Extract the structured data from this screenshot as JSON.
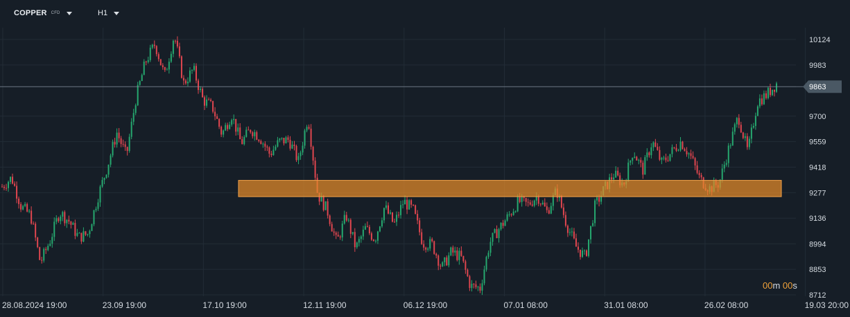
{
  "header": {
    "symbol": "COPPER",
    "symbol_sub": "CFD",
    "timeframe": "H1"
  },
  "timer": {
    "m": "00",
    "m_unit": "m ",
    "s": "00",
    "s_unit": "s"
  },
  "colors": {
    "background": "#161e27",
    "grid": "#222c36",
    "up": "#26a86f",
    "down": "#e0464f",
    "zone_fill": "#e58a2a",
    "zone_border": "#f2a24a",
    "price_marker": "#4a5864"
  },
  "chart_data": {
    "type": "candlestick",
    "ylim": [
      8712,
      10180
    ],
    "y_ticks": [
      10124,
      9983,
      9863,
      9700,
      9559,
      9418,
      9277,
      9136,
      8994,
      8853,
      8712
    ],
    "x_ticks": [
      "28.08.2024  19:00",
      "23.09  19:00",
      "17.10  19:00",
      "12.11  19:00",
      "06.12  19:00",
      "07.01  08:00",
      "31.01  08:00",
      "26.02  08:00",
      "19.03  20:00"
    ],
    "current_price": 9863,
    "zone": {
      "low": 9255,
      "high": 9345,
      "from": "05.11",
      "to": "current"
    },
    "path_anchors": [
      9310,
      9360,
      9200,
      9150,
      8890,
      9010,
      9170,
      9120,
      9030,
      9050,
      9250,
      9420,
      9610,
      9480,
      9800,
      10000,
      10100,
      9920,
      10150,
      9880,
      9960,
      9790,
      9750,
      9600,
      9710,
      9550,
      9630,
      9580,
      9490,
      9560,
      9570,
      9450,
      9700,
      9270,
      9180,
      9000,
      9150,
      8970,
      9080,
      9020,
      9200,
      9100,
      9230,
      9180,
      9000,
      8990,
      8860,
      8950,
      8920,
      8760,
      8750,
      9000,
      9080,
      9150,
      9230,
      9210,
      9260,
      9170,
      9290,
      9110,
      8980,
      8920,
      9200,
      9300,
      9380,
      9320,
      9510,
      9400,
      9560,
      9440,
      9500,
      9560,
      9480,
      9350,
      9300,
      9330,
      9520,
      9700,
      9500,
      9780,
      9820,
      9880
    ]
  }
}
